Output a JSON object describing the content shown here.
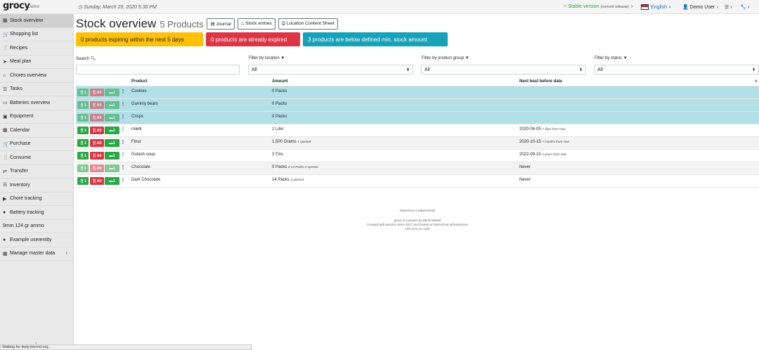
{
  "topbar": {
    "logo": "grocy",
    "logo_sub": "Demo",
    "date_icon": "clock-icon",
    "date": "Sunday, March 29, 2020 5:36 PM",
    "version": "Stable version",
    "version_note": "(current release)",
    "language": "English",
    "user": "Demo User",
    "menu_icon": "sliders-icon",
    "settings_icon": "wrench-icon",
    "arrow": "›"
  },
  "sidebar": {
    "items": [
      {
        "label": "Stock overview",
        "icon": "box-icon",
        "glyph": "▦",
        "active": true
      },
      {
        "label": "Shopping list",
        "icon": "cart-icon",
        "glyph": "🛒"
      },
      {
        "label": "Recipes",
        "icon": "cutlery-icon",
        "glyph": "🍴"
      },
      {
        "label": "Meal plan",
        "icon": "paper-plane-icon",
        "glyph": "➤"
      },
      {
        "label": "Chores overview",
        "icon": "home-icon",
        "glyph": "⌂"
      },
      {
        "label": "Tasks",
        "icon": "tasks-icon",
        "glyph": "☰"
      },
      {
        "label": "Batteries overview",
        "icon": "battery-icon",
        "glyph": "▭"
      },
      {
        "label": "Equipment",
        "icon": "toolbox-icon",
        "glyph": "▣"
      },
      {
        "label": "Calendar",
        "icon": "calendar-icon",
        "glyph": "▦"
      },
      {
        "label": "Purchase",
        "icon": "cart-icon",
        "glyph": "🛒"
      },
      {
        "label": "Consume",
        "icon": "cutlery-icon",
        "glyph": "🍴"
      },
      {
        "label": "Transfer",
        "icon": "exchange-icon",
        "glyph": "⇄"
      },
      {
        "label": "Inventory",
        "icon": "list-icon",
        "glyph": "☰"
      },
      {
        "label": "Chore tracking",
        "icon": "play-icon",
        "glyph": "▶"
      },
      {
        "label": "Battery tracking",
        "icon": "fire-icon",
        "glyph": "●"
      },
      {
        "label": "9mm 124 gr ammo",
        "icon": "",
        "glyph": ""
      },
      {
        "label": "Example userentity",
        "icon": "circle-icon",
        "glyph": "●"
      },
      {
        "label": "Manage master data",
        "icon": "table-icon",
        "glyph": "▦",
        "arrow": "›"
      }
    ],
    "collapse": "‹"
  },
  "statusbar": "Waiting for tiwip.berrnd.org...",
  "page": {
    "title": "Stock overview",
    "count": "5 Products",
    "buttons": [
      {
        "label": "Journal",
        "icon": "journal-icon",
        "glyph": "▤"
      },
      {
        "label": "Stock entries",
        "icon": "sitemap-icon",
        "glyph": "⛬"
      },
      {
        "label": "Location Content Sheet",
        "icon": "print-icon",
        "glyph": "⎙"
      }
    ]
  },
  "banners": {
    "expiring": "0 products expiring within the next 5 days",
    "expired": "0 products are already expired",
    "below_min": "3 products are below defined min. stock amount"
  },
  "filters": {
    "search_label": "Search",
    "search_icon": "search-icon",
    "location_label": "Filter by location",
    "location_value": "All",
    "group_label": "Filter by product group",
    "group_value": "All",
    "status_label": "Filter by status",
    "status_value": "All",
    "filter_icon": "funnel-icon",
    "caret": "⬍"
  },
  "table": {
    "headers": {
      "product": "Product",
      "amount": "Amount",
      "bbd": "Next best before date"
    },
    "action_labels": {
      "consume_one": "1",
      "consume_all": "All",
      "open_one": "1"
    },
    "rows": [
      {
        "product": "Cookies",
        "amount": "0 Packs",
        "amount_note": "",
        "bbd": "",
        "bbd_note": "",
        "style": "info faded"
      },
      {
        "product": "Gummy bears",
        "amount": "0 Packs",
        "amount_note": "",
        "bbd": "",
        "bbd_note": "",
        "style": "info faded"
      },
      {
        "product": "Crisps",
        "amount": "0 Packs",
        "amount_note": "",
        "bbd": "",
        "bbd_note": "",
        "style": "info faded"
      },
      {
        "product": "mælk",
        "amount": "1 Liter",
        "amount_note": "",
        "bbd": "2020-04-05",
        "bbd_note": "7 days from now",
        "style": ""
      },
      {
        "product": "Flour",
        "amount": "1,500 Grams",
        "amount_note": "1 opened",
        "bbd": "2020-10-15",
        "bbd_note": "7 months from now",
        "style": "striped"
      },
      {
        "product": "Gulash soup",
        "amount": "3 Tins",
        "amount_note": "",
        "bbd": "2022-09-15",
        "bbd_note": "3 years from now",
        "style": ""
      },
      {
        "product": "Chocolate",
        "amount": "0 Packs",
        "amount_note": "Σ 14 Packs 2 opened",
        "bbd": "Never",
        "bbd_note": "",
        "style": "striped faded"
      },
      {
        "product": "Dark Chocolate",
        "amount": "14 Packs",
        "amount_note": "2 opened",
        "bbd": "Never",
        "bbd_note": "",
        "style": ""
      }
    ]
  },
  "footer": {
    "links": "Impressum | Datenschutz",
    "line1": "grocy is a project by Bernd Bestel",
    "line2": "Created with passion since 2017 and hosted on berrnd.net infrastructure",
    "line3": "Life runs on code"
  }
}
